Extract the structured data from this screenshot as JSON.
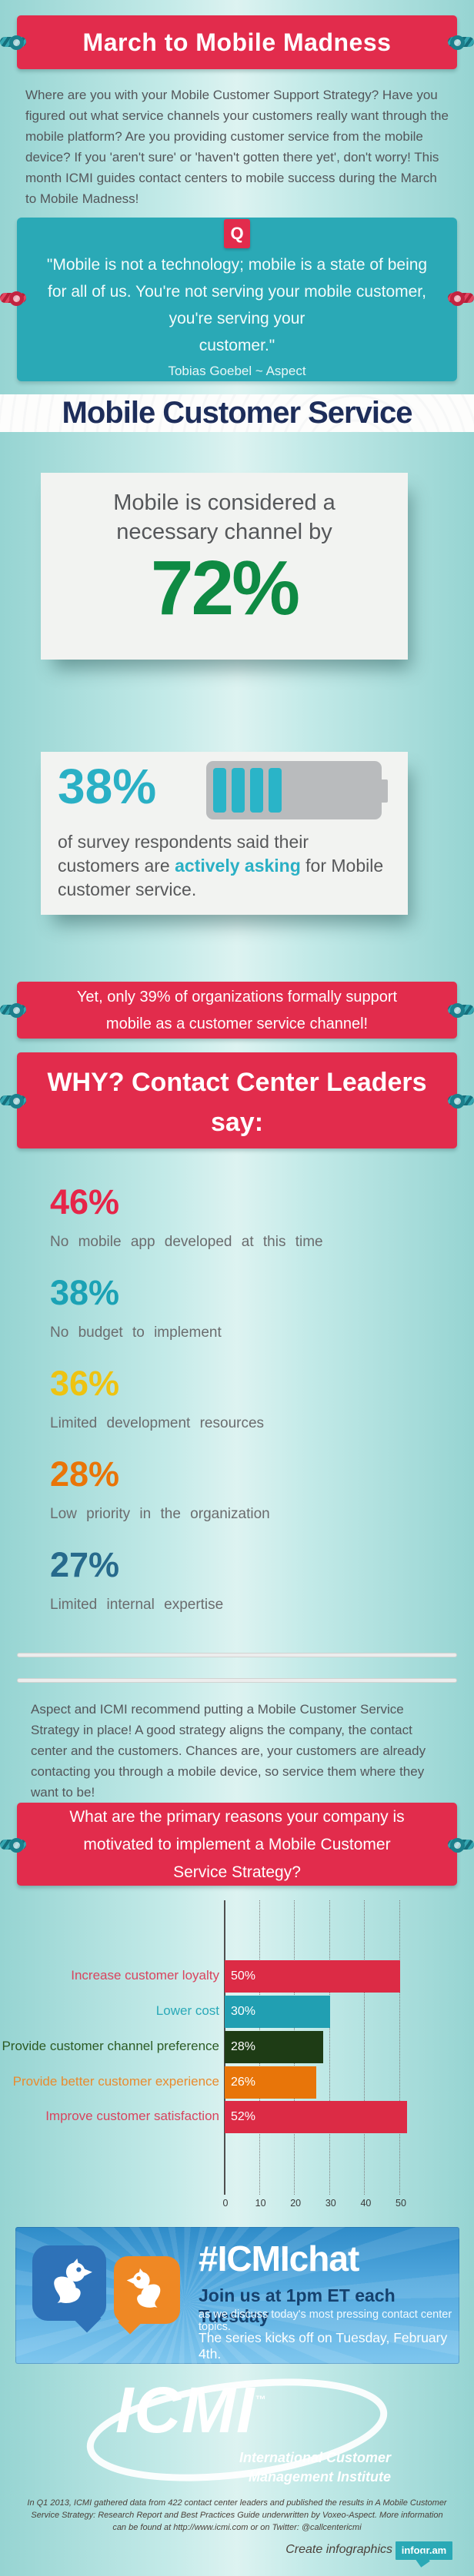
{
  "header": {
    "title": "March to Mobile Madness"
  },
  "intro": {
    "text": "Where are you with your Mobile Customer Support Strategy? Have you figured out what service channels your customers really want through the mobile platform? Are you providing customer service from the mobile device? If you 'aren't sure' or 'haven't gotten there yet', don't worry! This month ICMI guides contact centers to mobile success during the March to Mobile Madness!"
  },
  "quote": {
    "badge": "Q",
    "lines": [
      "\"Mobile is not a technology; mobile is a state of being",
      "for all of us. You're not serving your mobile customer,",
      "you're serving your",
      "customer.\""
    ],
    "attribution": "Tobias Goebel ~ Aspect"
  },
  "section_title": "Mobile Customer Service",
  "stat72": {
    "heading_lines": [
      "Mobile is considered a",
      "necessary channel by"
    ],
    "value": "72%",
    "value_color": "#0e8a43"
  },
  "stat38": {
    "value": "38%",
    "text_pre": "of survey respondents said their customers are ",
    "text_highlight": "actively asking",
    "text_post": " for Mobile customer service.",
    "battery_icon": "battery-4-of-8-bars",
    "battery_color": "#2ab4c8"
  },
  "ribbon39": {
    "lines": [
      "Yet, only 39% of organizations formally support",
      "mobile as a customer service channel!"
    ]
  },
  "ribbon_why": {
    "lines": [
      "WHY? Contact Center Leaders",
      "say:"
    ]
  },
  "reasons": [
    {
      "value": "46%",
      "label": "No mobile app developed at this time",
      "color": "#e62549"
    },
    {
      "value": "38%",
      "label": "No budget to implement",
      "color": "#1ba2b5"
    },
    {
      "value": "36%",
      "label": "Limited development resources",
      "color": "#eec311"
    },
    {
      "value": "28%",
      "label": "Low priority in the organization",
      "color": "#e97508"
    },
    {
      "value": "27%",
      "label": "Limited internal expertise",
      "color": "#276a8c"
    }
  ],
  "strategy_paragraph": "Aspect and ICMI recommend putting a Mobile Customer Service Strategy in place! A good strategy aligns the company, the contact center and the customers. Chances are, your customers are already contacting you through a mobile device, so service them where they want to be!",
  "ribbon_question": {
    "lines": [
      "What are the primary reasons your company is",
      "motivated to implement a Mobile Customer",
      "Service Strategy?"
    ]
  },
  "chart_data": {
    "type": "bar",
    "orientation": "horizontal",
    "categories": [
      "Increase customer loyalty",
      "Lower cost",
      "Provide customer channel preference",
      "Provide better customer experience",
      "Improve customer satisfaction"
    ],
    "values": [
      50,
      30,
      28,
      26,
      52
    ],
    "value_labels": [
      "50%",
      "30%",
      "28%",
      "26%",
      "52%"
    ],
    "bar_colors": [
      "#dc2b45",
      "#219fb2",
      "#1e3c15",
      "#e87509",
      "#dc2b45"
    ],
    "label_colors": [
      "#d9445e",
      "#2aa9b8",
      "#2c5a23",
      "#e98b2e",
      "#d9445e"
    ],
    "x_ticks": [
      "0",
      "10",
      "20",
      "30",
      "40",
      "50"
    ],
    "xlim": [
      0,
      55
    ],
    "grid": "vertical-dotted",
    "legend": "none",
    "title": ""
  },
  "icmichat": {
    "hashtag": "#ICMIchat",
    "join_line": "Join us at 1pm ET each Tuesday",
    "discuss_line": "as we discuss today's most pressing contact center topics.",
    "series_line": "The series kicks off on Tuesday, February 4th.",
    "bird_icons": [
      "bird-speech-bubble-blue",
      "bird-speech-bubble-orange"
    ],
    "bubble_colors": [
      "#2e72b8",
      "#ef8824"
    ]
  },
  "logo": {
    "word": "ICMI",
    "tm": "™",
    "tagline_lines": [
      "International Customer",
      "Management Institute"
    ]
  },
  "footer": {
    "lines": [
      "In Q1 2013, ICMI gathered data from 422 contact center leaders and published the results in A Mobile Customer",
      "Service Strategy: Research Report and Best Practices Guide underwritten by Voxeo-Aspect. More information",
      "can be found at http://www.icmi.com or on Twitter: @callcentericmi"
    ],
    "credit": "Create infographics",
    "badge": "infogr.am"
  }
}
